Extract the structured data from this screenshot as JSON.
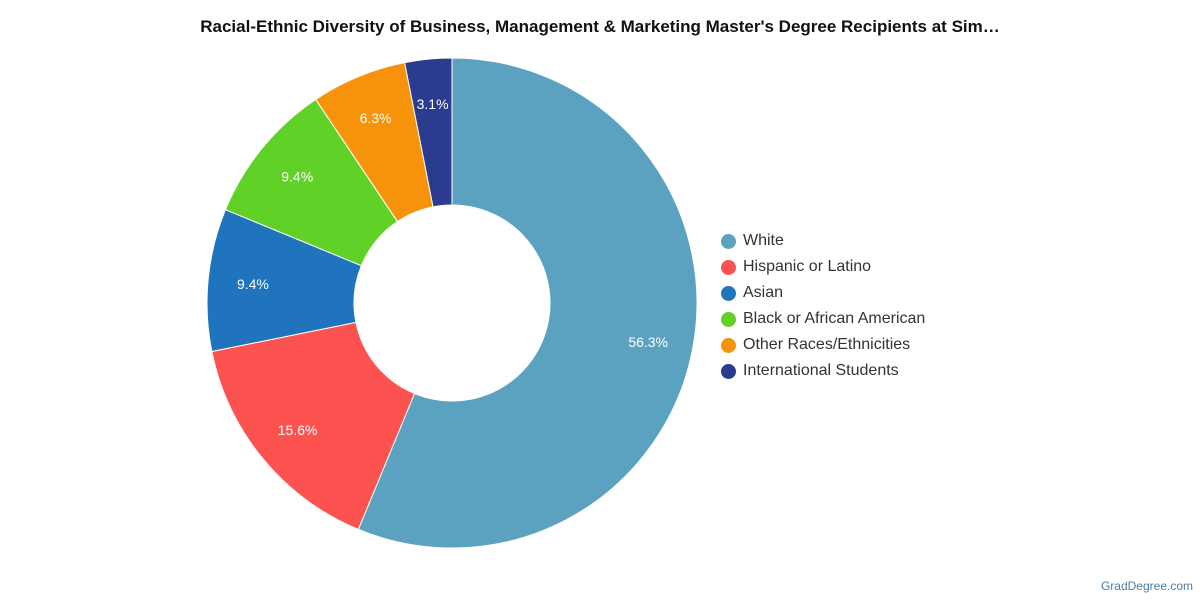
{
  "chart_data": {
    "type": "pie",
    "title": "Racial-Ethnic Diversity of Business, Management & Marketing Master's Degree Recipients at Sim…",
    "donut": true,
    "slices": [
      {
        "name": "White",
        "value": 56.3,
        "label": "56.3%",
        "color": "#5ba2c0"
      },
      {
        "name": "Hispanic or Latino",
        "value": 15.6,
        "label": "15.6%",
        "color": "#fc5250"
      },
      {
        "name": "Asian",
        "value": 9.4,
        "label": "9.4%",
        "color": "#1f74bd"
      },
      {
        "name": "Black or African American",
        "value": 9.4,
        "label": "9.4%",
        "color": "#60d126"
      },
      {
        "name": "Other Races/Ethnicities",
        "value": 6.3,
        "label": "6.3%",
        "color": "#f7930b"
      },
      {
        "name": "International Students",
        "value": 3.1,
        "label": "3.1%",
        "color": "#2b3b8f"
      }
    ],
    "legend_position": "right"
  },
  "credit": "GradDegree.com"
}
